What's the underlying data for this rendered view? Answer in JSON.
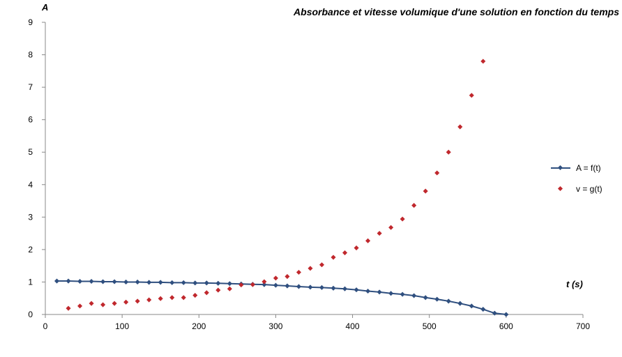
{
  "chart_data": {
    "type": "scatter",
    "title": "Absorbance et vitesse volumique d'une solution en fonction du temps",
    "xlabel": "t (s)",
    "ylabel": "A",
    "xlim": [
      0,
      700
    ],
    "ylim": [
      0,
      9
    ],
    "xticks": [
      0,
      100,
      200,
      300,
      400,
      500,
      600,
      700
    ],
    "yticks": [
      0,
      1,
      2,
      3,
      4,
      5,
      6,
      7,
      8,
      9
    ],
    "grid": false,
    "legend_position": "right",
    "series": [
      {
        "name": "A = f(t)",
        "style": "line-markers",
        "color": "#2f4f7f",
        "x": [
          15,
          30,
          45,
          60,
          75,
          90,
          105,
          120,
          135,
          150,
          165,
          180,
          195,
          210,
          225,
          240,
          255,
          270,
          285,
          300,
          315,
          330,
          345,
          360,
          375,
          390,
          405,
          420,
          435,
          450,
          465,
          480,
          495,
          510,
          525,
          540,
          555,
          570,
          585,
          600
        ],
        "y": [
          1.03,
          1.03,
          1.02,
          1.02,
          1.01,
          1.01,
          1.0,
          1.0,
          0.99,
          0.99,
          0.98,
          0.98,
          0.97,
          0.97,
          0.96,
          0.95,
          0.94,
          0.93,
          0.92,
          0.9,
          0.88,
          0.86,
          0.84,
          0.83,
          0.81,
          0.79,
          0.76,
          0.72,
          0.69,
          0.65,
          0.62,
          0.58,
          0.52,
          0.47,
          0.41,
          0.34,
          0.26,
          0.16,
          0.04,
          0.0
        ]
      },
      {
        "name": "v = g(t)",
        "style": "markers",
        "color": "#c0282d",
        "x": [
          30,
          45,
          60,
          75,
          90,
          105,
          120,
          135,
          150,
          165,
          180,
          195,
          210,
          225,
          240,
          255,
          270,
          285,
          300,
          315,
          330,
          345,
          360,
          375,
          390,
          405,
          420,
          435,
          450,
          465,
          480,
          495,
          510,
          525,
          540,
          555,
          570
        ],
        "y": [
          0.19,
          0.26,
          0.34,
          0.3,
          0.34,
          0.38,
          0.41,
          0.45,
          0.49,
          0.52,
          0.52,
          0.59,
          0.67,
          0.75,
          0.79,
          0.91,
          0.92,
          1.01,
          1.12,
          1.17,
          1.3,
          1.42,
          1.53,
          1.76,
          1.9,
          2.05,
          2.27,
          2.5,
          2.68,
          2.94,
          3.36,
          3.8,
          4.36,
          5.0,
          5.78,
          6.75,
          7.8
        ]
      }
    ]
  }
}
